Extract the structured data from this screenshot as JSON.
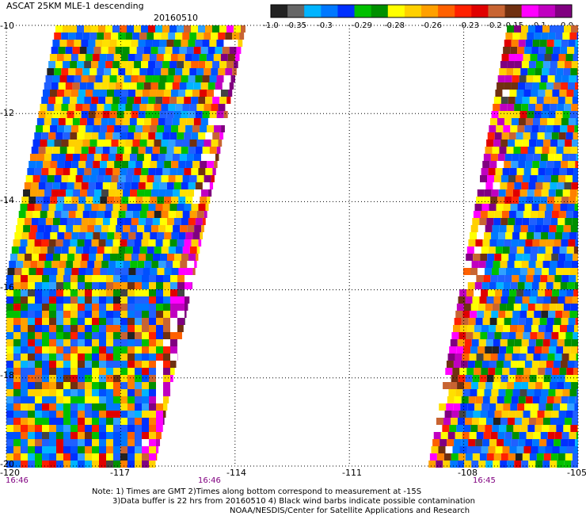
{
  "header": {
    "title": "ASCAT 25KM MLE-1 descending",
    "date": "20160510"
  },
  "colorbar": {
    "ticks": [
      "-1.0",
      "-0.35",
      "-0.3",
      "-0.29",
      "-0.28",
      "-0.26",
      "-0.23",
      "-0.2",
      "-0.15",
      "-0.1",
      "0.0"
    ],
    "colors": [
      "#222222",
      "#666666",
      "#00b4ff",
      "#0078ff",
      "#0030ff",
      "#00c000",
      "#009000",
      "#ffff00",
      "#ffd000",
      "#ffa000",
      "#ff6000",
      "#ff2000",
      "#e00000",
      "#c86432",
      "#703010",
      "#ff00ff",
      "#c000c0",
      "#800080"
    ]
  },
  "axes": {
    "lon_ticks": [
      "-120",
      "-117",
      "-114",
      "-111",
      "-108",
      "-105"
    ],
    "lat_ticks": [
      "-10",
      "-12",
      "-14",
      "-16",
      "-18",
      "-20"
    ]
  },
  "times": [
    "16:46",
    "16:46",
    "16:45"
  ],
  "notes": [
    "Note: 1) Times are GMT 2)Times along bottom correspond to measurement at -15S",
    "3)Data buffer is 22 hrs from 20160510 4) Black wind barbs indicate possible contamination",
    "NOAA/NESDIS/Center for Satellite Applications and Research"
  ],
  "map_data": {
    "type": "heatmap",
    "variable": "MLE",
    "lon_range": [
      -120,
      -105
    ],
    "lat_range": [
      -20,
      -10
    ],
    "value_range": [
      -1.0,
      0.0
    ]
  }
}
